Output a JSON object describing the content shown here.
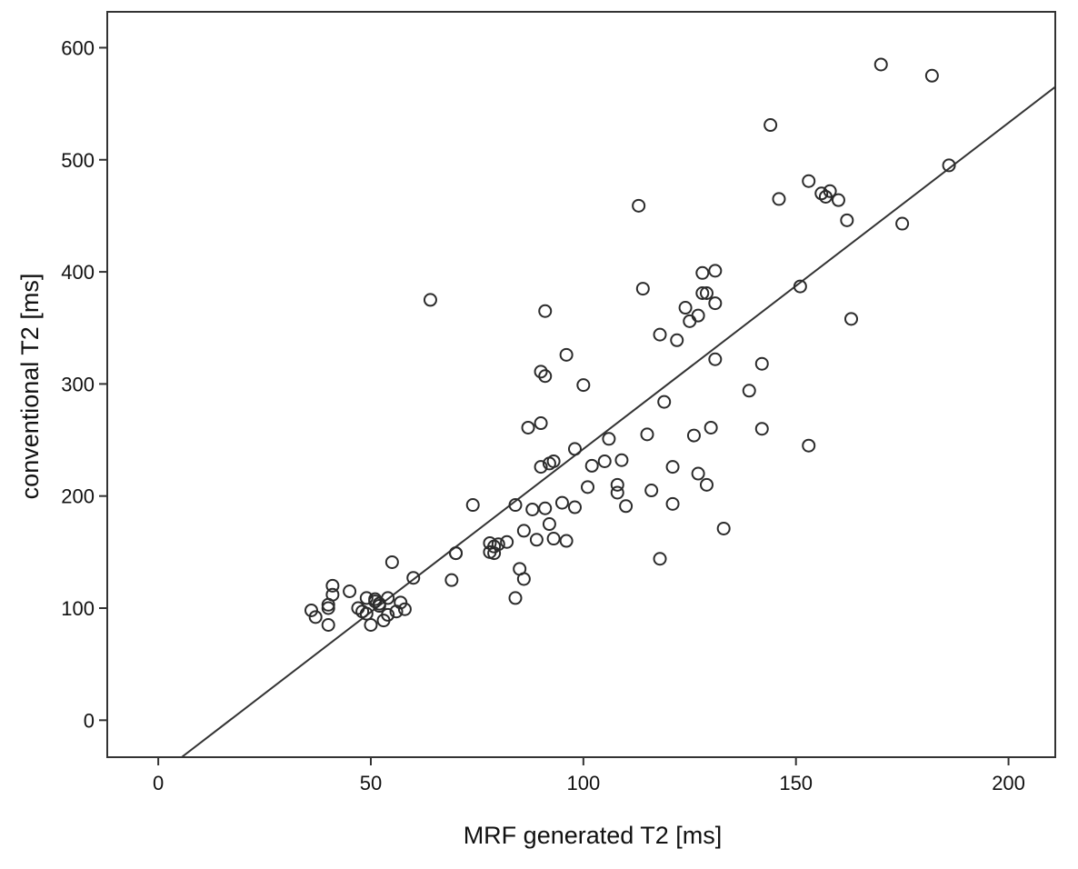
{
  "chart_data": {
    "type": "scatter",
    "title": "",
    "xlabel": "MRF generated T2 [ms]",
    "ylabel": "conventional T2 [ms]",
    "xlim": [
      -12,
      211
    ],
    "ylim": [
      -33,
      632
    ],
    "xticks": [
      0,
      50,
      100,
      150,
      200
    ],
    "yticks": [
      0,
      100,
      200,
      300,
      400,
      500,
      600
    ],
    "xtick_labels": [
      "0",
      "50",
      "100",
      "150",
      "200"
    ],
    "ytick_labels": [
      "0",
      "100",
      "200",
      "300",
      "400",
      "500",
      "600"
    ],
    "grid": false,
    "fit_line": {
      "slope": 2.91,
      "intercept": -49
    },
    "points": [
      [
        36,
        98
      ],
      [
        37,
        92
      ],
      [
        40,
        103
      ],
      [
        40,
        100
      ],
      [
        41,
        112
      ],
      [
        41,
        120
      ],
      [
        40,
        85
      ],
      [
        45,
        115
      ],
      [
        47,
        100
      ],
      [
        48,
        97
      ],
      [
        49,
        95
      ],
      [
        49,
        109
      ],
      [
        50,
        85
      ],
      [
        51,
        106
      ],
      [
        51,
        108
      ],
      [
        52,
        104
      ],
      [
        52,
        102
      ],
      [
        53,
        89
      ],
      [
        54,
        109
      ],
      [
        54,
        94
      ],
      [
        56,
        97
      ],
      [
        57,
        105
      ],
      [
        58,
        99
      ],
      [
        55,
        141
      ],
      [
        60,
        127
      ],
      [
        64,
        375
      ],
      [
        69,
        125
      ],
      [
        70,
        149
      ],
      [
        70,
        149
      ],
      [
        74,
        192
      ],
      [
        78,
        158
      ],
      [
        78,
        150
      ],
      [
        79,
        155
      ],
      [
        79,
        149
      ],
      [
        80,
        157
      ],
      [
        82,
        159
      ],
      [
        84,
        192
      ],
      [
        84,
        109
      ],
      [
        85,
        135
      ],
      [
        86,
        126
      ],
      [
        86,
        169
      ],
      [
        87,
        261
      ],
      [
        88,
        188
      ],
      [
        89,
        161
      ],
      [
        90,
        311
      ],
      [
        90,
        265
      ],
      [
        90,
        226
      ],
      [
        91,
        189
      ],
      [
        91,
        307
      ],
      [
        91,
        365
      ],
      [
        92,
        229
      ],
      [
        93,
        231
      ],
      [
        92,
        175
      ],
      [
        93,
        162
      ],
      [
        95,
        194
      ],
      [
        96,
        326
      ],
      [
        96,
        160
      ],
      [
        98,
        242
      ],
      [
        98,
        190
      ],
      [
        100,
        299
      ],
      [
        101,
        208
      ],
      [
        102,
        227
      ],
      [
        105,
        231
      ],
      [
        106,
        251
      ],
      [
        108,
        203
      ],
      [
        108,
        210
      ],
      [
        109,
        232
      ],
      [
        110,
        191
      ],
      [
        113,
        459
      ],
      [
        114,
        385
      ],
      [
        115,
        255
      ],
      [
        116,
        205
      ],
      [
        118,
        144
      ],
      [
        118,
        344
      ],
      [
        119,
        284
      ],
      [
        121,
        193
      ],
      [
        121,
        226
      ],
      [
        122,
        339
      ],
      [
        124,
        368
      ],
      [
        125,
        356
      ],
      [
        126,
        254
      ],
      [
        127,
        361
      ],
      [
        127,
        220
      ],
      [
        128,
        381
      ],
      [
        128,
        399
      ],
      [
        129,
        210
      ],
      [
        129,
        381
      ],
      [
        130,
        261
      ],
      [
        131,
        322
      ],
      [
        131,
        401
      ],
      [
        131,
        372
      ],
      [
        133,
        171
      ],
      [
        139,
        294
      ],
      [
        142,
        260
      ],
      [
        142,
        318
      ],
      [
        144,
        531
      ],
      [
        146,
        465
      ],
      [
        151,
        387
      ],
      [
        153,
        481
      ],
      [
        153,
        245
      ],
      [
        156,
        470
      ],
      [
        157,
        467
      ],
      [
        158,
        472
      ],
      [
        160,
        464
      ],
      [
        162,
        446
      ],
      [
        163,
        358
      ],
      [
        170,
        585
      ],
      [
        175,
        443
      ],
      [
        182,
        575
      ],
      [
        186,
        495
      ]
    ]
  }
}
